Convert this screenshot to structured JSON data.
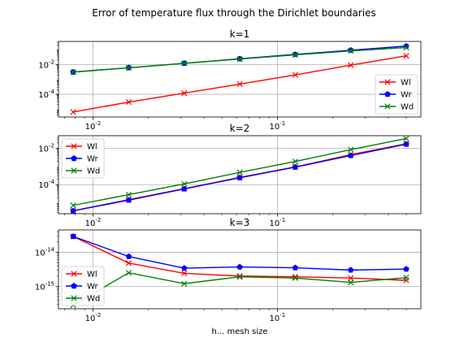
{
  "figure": {
    "suptitle": "Error of temperature flux through the Dirichlet boundaries",
    "xlabel": "h... mesh size"
  },
  "colors": {
    "Wl": "#ff0000",
    "Wr": "#0000ff",
    "Wd": "#008000"
  },
  "chart_data": [
    {
      "type": "line",
      "title": "k=1",
      "xscale": "log",
      "yscale": "log",
      "xlim": [
        0.0065,
        0.6
      ],
      "ylim": [
        3e-06,
        0.35
      ],
      "x": [
        0.0078125,
        0.015625,
        0.03125,
        0.0625,
        0.125,
        0.25,
        0.5
      ],
      "xticks": [
        {
          "value": 0.01,
          "label": "10^-2"
        },
        {
          "value": 0.1,
          "label": "10^-1"
        }
      ],
      "yticks": [
        {
          "value": 0.0001,
          "label": "10^-4"
        },
        {
          "value": 0.01,
          "label": "10^-2"
        }
      ],
      "grid": true,
      "legend": "bottom-right",
      "series": [
        {
          "name": "Wl",
          "marker": "x",
          "values": [
            6.5e-06,
            3e-05,
            0.00012,
            0.00048,
            0.002,
            0.009,
            0.038
          ]
        },
        {
          "name": "Wr",
          "marker": "pentagon",
          "values": [
            0.0031,
            0.006,
            0.012,
            0.024,
            0.047,
            0.09,
            0.17
          ]
        },
        {
          "name": "Wd",
          "marker": "x",
          "values": [
            0.0031,
            0.006,
            0.012,
            0.023,
            0.044,
            0.081,
            0.135
          ]
        }
      ]
    },
    {
      "type": "line",
      "title": "k=2",
      "xscale": "log",
      "yscale": "log",
      "xlim": [
        0.0065,
        0.6
      ],
      "ylim": [
        2.5e-06,
        0.05
      ],
      "x": [
        0.0078125,
        0.015625,
        0.03125,
        0.0625,
        0.125,
        0.25,
        0.5
      ],
      "xticks": [
        {
          "value": 0.01,
          "label": "10^-2"
        },
        {
          "value": 0.1,
          "label": "10^-1"
        }
      ],
      "yticks": [
        {
          "value": 0.0001,
          "label": "10^-4"
        },
        {
          "value": 0.01,
          "label": "10^-2"
        }
      ],
      "grid": true,
      "legend": "top-left",
      "series": [
        {
          "name": "Wl",
          "marker": "x",
          "values": [
            3.6e-06,
            1.5e-05,
            6e-05,
            0.00025,
            0.00095,
            0.0045,
            0.018
          ]
        },
        {
          "name": "Wr",
          "marker": "pentagon",
          "values": [
            3.6e-06,
            1.4e-05,
            5.8e-05,
            0.00024,
            0.00092,
            0.004,
            0.017
          ]
        },
        {
          "name": "Wd",
          "marker": "x",
          "values": [
            7.2e-06,
            2.8e-05,
            0.00011,
            0.00047,
            0.0019,
            0.0085,
            0.035
          ]
        }
      ]
    },
    {
      "type": "line",
      "title": "k=3",
      "xscale": "log",
      "yscale": "log",
      "xlim": [
        0.0065,
        0.6
      ],
      "ylim": [
        2.2e-16,
        4.5e-14
      ],
      "x": [
        0.0078125,
        0.015625,
        0.03125,
        0.0625,
        0.125,
        0.25,
        0.5
      ],
      "xticks": [
        {
          "value": 0.01,
          "label": "10^-2"
        },
        {
          "value": 0.1,
          "label": "10^-1"
        }
      ],
      "yticks": [
        {
          "value": 1e-15,
          "label": "10^-15"
        },
        {
          "value": 1e-14,
          "label": "10^-14"
        }
      ],
      "grid": true,
      "legend": "bottom-left",
      "series": [
        {
          "name": "Wl",
          "marker": "x",
          "values": [
            2.9e-14,
            4.8e-15,
            2.4e-15,
            2e-15,
            1.9e-15,
            1.75e-15,
            1.5e-15
          ]
        },
        {
          "name": "Wr",
          "marker": "pentagon",
          "values": [
            2.9e-14,
            7.5e-15,
            3.4e-15,
            3.7e-15,
            3.5e-15,
            3e-15,
            3.2e-15
          ]
        },
        {
          "name": "Wd",
          "marker": "x",
          "values": [
            2.8e-16,
            2.5e-15,
            1.2e-15,
            1.9e-15,
            1.75e-15,
            1.3e-15,
            1.8e-15
          ]
        }
      ]
    }
  ]
}
